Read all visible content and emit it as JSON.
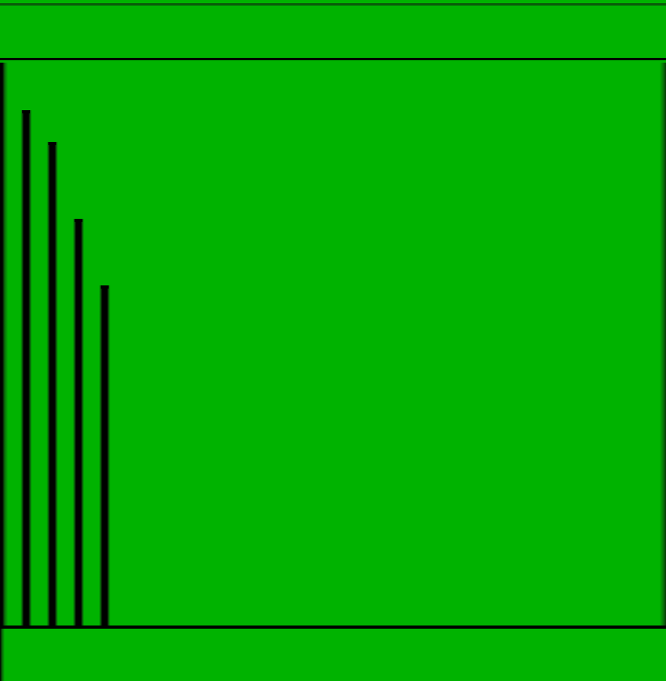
{
  "colors": {
    "background": "#00b300",
    "line": "#000000"
  },
  "bars": [
    {
      "name": "bar-1",
      "level": 0.915
    },
    {
      "name": "bar-2",
      "level": 0.859
    },
    {
      "name": "bar-3",
      "level": 0.723
    },
    {
      "name": "bar-4",
      "level": 0.604
    }
  ]
}
